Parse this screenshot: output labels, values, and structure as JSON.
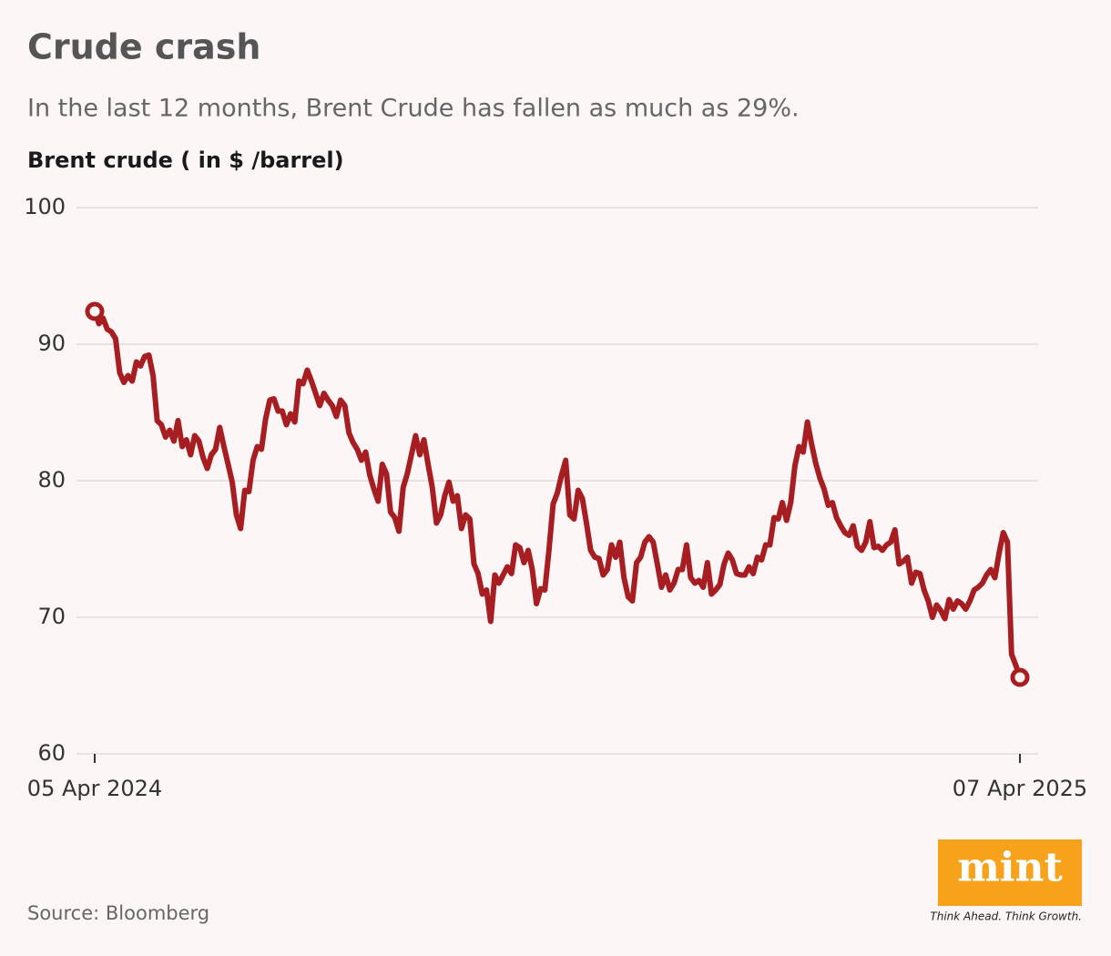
{
  "chart_data": {
    "type": "line",
    "title": "Crude crash",
    "subtitle": "In the last 12 months, Brent Crude has fallen as much as 29%.",
    "y_label": "Brent crude ( in $ /barrel)",
    "source": "Source: Bloomberg",
    "color": "#a61e22",
    "end_markers": true,
    "ylim": [
      60,
      100
    ],
    "yticks": [
      60,
      70,
      80,
      90,
      100
    ],
    "grid": true,
    "categories": [
      "05 Apr 2024",
      null,
      null,
      null,
      null,
      null,
      null,
      null,
      null,
      null,
      null,
      null,
      null,
      null,
      null,
      null,
      null,
      null,
      null,
      null,
      null,
      null,
      null,
      null,
      null,
      null,
      null,
      null,
      null,
      null,
      null,
      null,
      null,
      null,
      null,
      null,
      null,
      null,
      null,
      null,
      null,
      null,
      null,
      null,
      null,
      null,
      null,
      null,
      null,
      null,
      null,
      null,
      null,
      null,
      null,
      null,
      null,
      null,
      null,
      null,
      null,
      null,
      null,
      null,
      null,
      null,
      null,
      null,
      null,
      null,
      null,
      null,
      null,
      null,
      null,
      null,
      null,
      null,
      null,
      null,
      null,
      null,
      null,
      null,
      null,
      null,
      null,
      null,
      null,
      null,
      null,
      null,
      null,
      null,
      null,
      null,
      null,
      null,
      null,
      null,
      null,
      null,
      null,
      null,
      null,
      null,
      null,
      null,
      null,
      null,
      null,
      null,
      null,
      null,
      null,
      null,
      null,
      null,
      null,
      null,
      null,
      null,
      null,
      null,
      null,
      null,
      null,
      null,
      null,
      null,
      null,
      null,
      null,
      null,
      null,
      null,
      null,
      null,
      null,
      null,
      null,
      null,
      null,
      null,
      null,
      null,
      null,
      null,
      null,
      null,
      null,
      null,
      null,
      null,
      null,
      null,
      null,
      null,
      null,
      null,
      null,
      null,
      null,
      null,
      null,
      null,
      null,
      null,
      null,
      null,
      null,
      null,
      null,
      null,
      null,
      null,
      null,
      null,
      null,
      null,
      null,
      null,
      null,
      null,
      null,
      null,
      null,
      null,
      null,
      null,
      null,
      null,
      null,
      null,
      null,
      null,
      null,
      null,
      null,
      null,
      null,
      null,
      null,
      null,
      null,
      null,
      null,
      null,
      null,
      null,
      null,
      null,
      null,
      null,
      null,
      null,
      null,
      null,
      null,
      null,
      null,
      null,
      "07 Apr 2025"
    ],
    "values": [
      92.4,
      91.5,
      91.9,
      91.1,
      90.9,
      90.4,
      87.9,
      87.2,
      87.7,
      87.3,
      88.7,
      88.4,
      89.1,
      89.2,
      87.7,
      84.4,
      84.1,
      83.2,
      83.7,
      82.9,
      84.4,
      82.5,
      83.0,
      81.9,
      83.3,
      82.9,
      81.7,
      80.9,
      81.9,
      82.3,
      83.9,
      82.5,
      81.2,
      79.9,
      77.5,
      76.5,
      79.3,
      79.2,
      81.5,
      82.5,
      82.3,
      84.5,
      85.9,
      86.0,
      85.1,
      85.1,
      84.1,
      84.9,
      84.3,
      87.3,
      87.1,
      88.1,
      87.3,
      86.4,
      85.5,
      86.4,
      85.9,
      85.5,
      84.7,
      85.9,
      85.5,
      83.5,
      82.8,
      82.3,
      81.5,
      82.1,
      80.4,
      79.4,
      78.5,
      81.2,
      80.5,
      77.7,
      77.3,
      76.3,
      79.5,
      80.5,
      81.9,
      83.3,
      81.9,
      83.0,
      81.2,
      79.5,
      76.9,
      77.5,
      78.9,
      79.9,
      78.5,
      78.9,
      76.5,
      77.5,
      77.2,
      73.9,
      73.2,
      71.7,
      72.0,
      69.7,
      73.1,
      72.5,
      73.1,
      73.7,
      73.2,
      75.3,
      75.1,
      74.0,
      74.9,
      73.5,
      71.0,
      72.1,
      72.0,
      74.9,
      78.3,
      79.1,
      80.4,
      81.5,
      77.5,
      77.2,
      79.3,
      78.7,
      76.9,
      74.9,
      74.4,
      74.3,
      73.1,
      73.5,
      75.3,
      74.4,
      75.5,
      72.9,
      71.5,
      71.2,
      74.0,
      74.4,
      75.5,
      75.9,
      75.5,
      73.9,
      72.2,
      73.1,
      72.0,
      72.5,
      73.5,
      73.5,
      75.3,
      72.9,
      72.5,
      72.7,
      72.2,
      74.0,
      71.7,
      72.0,
      72.4,
      73.9,
      74.7,
      74.2,
      73.2,
      73.1,
      73.1,
      73.7,
      73.2,
      74.4,
      74.2,
      75.3,
      75.3,
      77.3,
      77.2,
      78.4,
      77.1,
      78.4,
      81.1,
      82.5,
      82.1,
      84.3,
      82.7,
      81.3,
      80.2,
      79.4,
      78.2,
      78.4,
      77.3,
      76.7,
      76.2,
      76.0,
      76.7,
      75.2,
      74.9,
      75.5,
      77.0,
      75.1,
      75.2,
      74.9,
      75.3,
      75.5,
      76.4,
      73.9,
      74.1,
      74.4,
      72.5,
      73.3,
      73.2,
      72.0,
      71.2,
      70.0,
      70.9,
      70.5,
      69.9,
      71.3,
      70.6,
      71.2,
      71.0,
      70.6,
      71.2,
      72.0,
      72.2,
      72.5,
      73.1,
      73.5,
      72.9,
      74.7,
      76.2,
      75.5,
      67.3,
      66.5,
      65.6
    ]
  },
  "logo": {
    "name": "mint",
    "tagline": "Think Ahead. Think Growth."
  }
}
